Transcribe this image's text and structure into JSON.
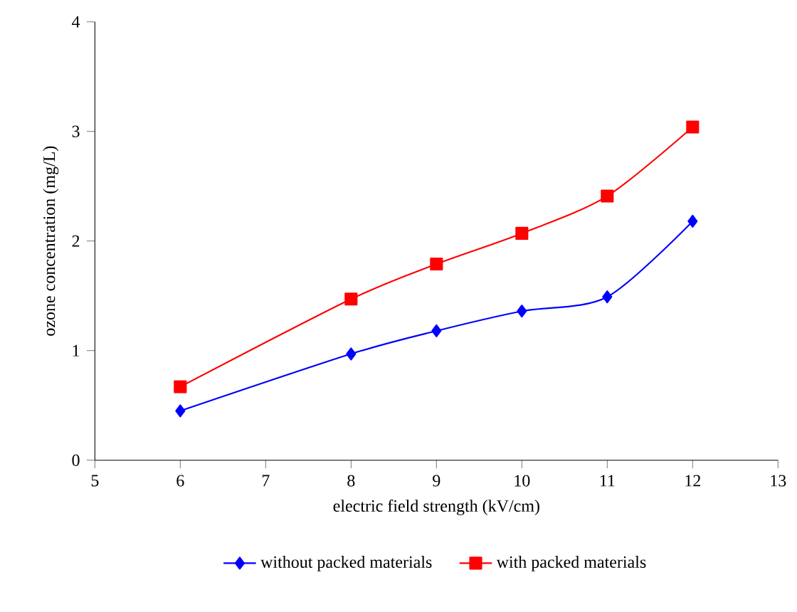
{
  "chart_data": {
    "type": "line",
    "xlabel": "electric field strength (kV/cm)",
    "ylabel": "ozone concentration  (mg/L)",
    "xlim": [
      5,
      13
    ],
    "xticks": [
      5,
      6,
      7,
      8,
      9,
      10,
      11,
      12,
      13
    ],
    "ylim": [
      0,
      4
    ],
    "yticks": [
      0,
      1,
      2,
      3,
      4
    ],
    "x": [
      6,
      8,
      9,
      10,
      11,
      12
    ],
    "series": [
      {
        "name": "without packed materials",
        "color": "#0000ff",
        "marker": "diamond",
        "values": [
          0.45,
          0.97,
          1.18,
          1.36,
          1.49,
          2.18
        ]
      },
      {
        "name": "with packed materials",
        "color": "#ff0000",
        "marker": "square",
        "values": [
          0.67,
          1.47,
          1.79,
          2.07,
          2.41,
          3.04
        ]
      }
    ],
    "legend": "bottom",
    "grid": false
  }
}
